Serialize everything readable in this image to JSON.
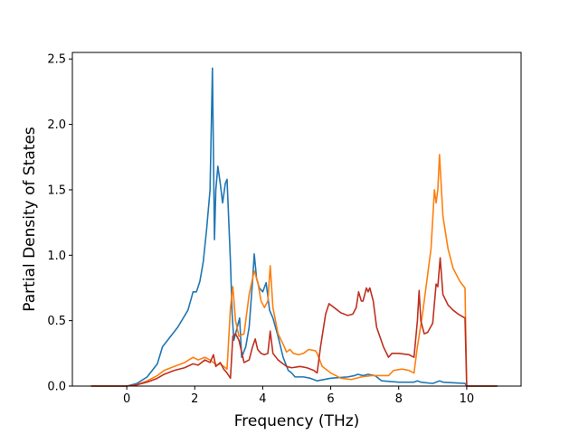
{
  "chart_data": {
    "type": "line",
    "title": "",
    "xlabel": "Frequency (THz)",
    "ylabel": "Partial Density of States",
    "xlim": [
      -1.6,
      11.6
    ],
    "ylim": [
      0,
      2.55
    ],
    "xticks": [
      0,
      2,
      4,
      6,
      8,
      10
    ],
    "yticks": [
      0.0,
      0.5,
      1.0,
      1.5,
      2.0,
      2.5
    ],
    "xtick_labels": [
      "0",
      "2",
      "4",
      "6",
      "8",
      "10"
    ],
    "ytick_labels": [
      "0.0",
      "0.5",
      "1.0",
      "1.5",
      "2.0",
      "2.5"
    ],
    "grid": false,
    "legend": "none",
    "series": [
      {
        "color": "#1f77b4",
        "points": [
          [
            -1.05,
            0
          ],
          [
            0,
            0
          ],
          [
            0.3,
            0.02
          ],
          [
            0.6,
            0.07
          ],
          [
            0.9,
            0.17
          ],
          [
            1.05,
            0.3
          ],
          [
            1.2,
            0.35
          ],
          [
            1.5,
            0.45
          ],
          [
            1.8,
            0.58
          ],
          [
            1.95,
            0.72
          ],
          [
            2.05,
            0.72
          ],
          [
            2.15,
            0.8
          ],
          [
            2.25,
            0.95
          ],
          [
            2.35,
            1.2
          ],
          [
            2.45,
            1.5
          ],
          [
            2.52,
            2.43
          ],
          [
            2.58,
            1.12
          ],
          [
            2.62,
            1.5
          ],
          [
            2.68,
            1.68
          ],
          [
            2.75,
            1.55
          ],
          [
            2.82,
            1.4
          ],
          [
            2.9,
            1.55
          ],
          [
            2.95,
            1.58
          ],
          [
            3.05,
            0.95
          ],
          [
            3.1,
            0.55
          ],
          [
            3.15,
            0.35
          ],
          [
            3.22,
            0.42
          ],
          [
            3.32,
            0.52
          ],
          [
            3.38,
            0.22
          ],
          [
            3.5,
            0.3
          ],
          [
            3.6,
            0.45
          ],
          [
            3.7,
            0.8
          ],
          [
            3.75,
            1.01
          ],
          [
            3.82,
            0.82
          ],
          [
            3.9,
            0.75
          ],
          [
            4.0,
            0.72
          ],
          [
            4.1,
            0.79
          ],
          [
            4.2,
            0.58
          ],
          [
            4.3,
            0.52
          ],
          [
            4.45,
            0.38
          ],
          [
            4.6,
            0.22
          ],
          [
            4.75,
            0.12
          ],
          [
            4.85,
            0.1
          ],
          [
            4.95,
            0.07
          ],
          [
            5.2,
            0.07
          ],
          [
            5.4,
            0.06
          ],
          [
            5.6,
            0.04
          ],
          [
            6.0,
            0.06
          ],
          [
            6.5,
            0.07
          ],
          [
            6.7,
            0.08
          ],
          [
            6.8,
            0.09
          ],
          [
            6.95,
            0.08
          ],
          [
            7.1,
            0.09
          ],
          [
            7.3,
            0.08
          ],
          [
            7.5,
            0.04
          ],
          [
            8.0,
            0.03
          ],
          [
            8.45,
            0.03
          ],
          [
            8.55,
            0.04
          ],
          [
            8.65,
            0.03
          ],
          [
            9.0,
            0.02
          ],
          [
            9.2,
            0.04
          ],
          [
            9.3,
            0.03
          ],
          [
            9.95,
            0.02
          ],
          [
            10.0,
            0
          ],
          [
            10.9,
            0
          ]
        ]
      },
      {
        "color": "#ff7f0e",
        "points": [
          [
            -1.05,
            0
          ],
          [
            0,
            0
          ],
          [
            0.3,
            0.01
          ],
          [
            0.6,
            0.04
          ],
          [
            0.9,
            0.08
          ],
          [
            1.1,
            0.12
          ],
          [
            1.4,
            0.15
          ],
          [
            1.7,
            0.18
          ],
          [
            1.95,
            0.22
          ],
          [
            2.1,
            0.2
          ],
          [
            2.3,
            0.22
          ],
          [
            2.45,
            0.2
          ],
          [
            2.55,
            0.18
          ],
          [
            2.65,
            0.16
          ],
          [
            2.75,
            0.17
          ],
          [
            2.85,
            0.15
          ],
          [
            2.95,
            0.13
          ],
          [
            3.05,
            0.6
          ],
          [
            3.12,
            0.76
          ],
          [
            3.2,
            0.5
          ],
          [
            3.3,
            0.38
          ],
          [
            3.45,
            0.4
          ],
          [
            3.6,
            0.7
          ],
          [
            3.75,
            0.88
          ],
          [
            3.85,
            0.8
          ],
          [
            3.95,
            0.65
          ],
          [
            4.05,
            0.6
          ],
          [
            4.15,
            0.65
          ],
          [
            4.22,
            0.92
          ],
          [
            4.3,
            0.6
          ],
          [
            4.45,
            0.4
          ],
          [
            4.6,
            0.32
          ],
          [
            4.7,
            0.26
          ],
          [
            4.8,
            0.28
          ],
          [
            4.9,
            0.25
          ],
          [
            5.05,
            0.24
          ],
          [
            5.2,
            0.25
          ],
          [
            5.35,
            0.28
          ],
          [
            5.55,
            0.27
          ],
          [
            5.6,
            0.25
          ],
          [
            5.75,
            0.15
          ],
          [
            6.0,
            0.1
          ],
          [
            6.3,
            0.06
          ],
          [
            6.6,
            0.05
          ],
          [
            6.9,
            0.07
          ],
          [
            7.2,
            0.08
          ],
          [
            7.5,
            0.08
          ],
          [
            7.7,
            0.08
          ],
          [
            7.85,
            0.12
          ],
          [
            8.1,
            0.13
          ],
          [
            8.3,
            0.12
          ],
          [
            8.45,
            0.1
          ],
          [
            8.55,
            0.3
          ],
          [
            8.7,
            0.55
          ],
          [
            8.8,
            0.75
          ],
          [
            8.95,
            1.05
          ],
          [
            9.05,
            1.5
          ],
          [
            9.1,
            1.4
          ],
          [
            9.15,
            1.5
          ],
          [
            9.2,
            1.77
          ],
          [
            9.3,
            1.3
          ],
          [
            9.45,
            1.05
          ],
          [
            9.6,
            0.9
          ],
          [
            9.8,
            0.8
          ],
          [
            9.95,
            0.75
          ],
          [
            10.0,
            0
          ],
          [
            10.9,
            0
          ]
        ]
      },
      {
        "color": "#bf3020",
        "points": [
          [
            -1.05,
            0
          ],
          [
            0,
            0
          ],
          [
            0.3,
            0.01
          ],
          [
            0.6,
            0.03
          ],
          [
            0.9,
            0.06
          ],
          [
            1.1,
            0.09
          ],
          [
            1.4,
            0.12
          ],
          [
            1.7,
            0.14
          ],
          [
            1.95,
            0.17
          ],
          [
            2.1,
            0.16
          ],
          [
            2.3,
            0.2
          ],
          [
            2.45,
            0.18
          ],
          [
            2.55,
            0.24
          ],
          [
            2.62,
            0.15
          ],
          [
            2.75,
            0.18
          ],
          [
            2.85,
            0.13
          ],
          [
            2.95,
            0.1
          ],
          [
            3.05,
            0.06
          ],
          [
            3.12,
            0.38
          ],
          [
            3.2,
            0.4
          ],
          [
            3.3,
            0.35
          ],
          [
            3.45,
            0.18
          ],
          [
            3.6,
            0.2
          ],
          [
            3.7,
            0.3
          ],
          [
            3.78,
            0.36
          ],
          [
            3.85,
            0.28
          ],
          [
            3.95,
            0.25
          ],
          [
            4.05,
            0.24
          ],
          [
            4.15,
            0.25
          ],
          [
            4.22,
            0.42
          ],
          [
            4.3,
            0.25
          ],
          [
            4.45,
            0.2
          ],
          [
            4.55,
            0.18
          ],
          [
            4.7,
            0.15
          ],
          [
            4.85,
            0.14
          ],
          [
            5.1,
            0.15
          ],
          [
            5.3,
            0.14
          ],
          [
            5.5,
            0.12
          ],
          [
            5.6,
            0.1
          ],
          [
            5.7,
            0.3
          ],
          [
            5.85,
            0.55
          ],
          [
            5.95,
            0.63
          ],
          [
            6.1,
            0.6
          ],
          [
            6.3,
            0.56
          ],
          [
            6.5,
            0.54
          ],
          [
            6.65,
            0.55
          ],
          [
            6.75,
            0.6
          ],
          [
            6.82,
            0.72
          ],
          [
            6.9,
            0.65
          ],
          [
            6.95,
            0.65
          ],
          [
            7.05,
            0.75
          ],
          [
            7.1,
            0.72
          ],
          [
            7.15,
            0.75
          ],
          [
            7.25,
            0.65
          ],
          [
            7.35,
            0.45
          ],
          [
            7.55,
            0.3
          ],
          [
            7.7,
            0.22
          ],
          [
            7.8,
            0.25
          ],
          [
            8.0,
            0.25
          ],
          [
            8.3,
            0.24
          ],
          [
            8.45,
            0.22
          ],
          [
            8.55,
            0.5
          ],
          [
            8.6,
            0.73
          ],
          [
            8.65,
            0.5
          ],
          [
            8.75,
            0.4
          ],
          [
            8.85,
            0.41
          ],
          [
            9.0,
            0.48
          ],
          [
            9.1,
            0.78
          ],
          [
            9.15,
            0.76
          ],
          [
            9.22,
            0.98
          ],
          [
            9.3,
            0.7
          ],
          [
            9.45,
            0.62
          ],
          [
            9.6,
            0.58
          ],
          [
            9.75,
            0.55
          ],
          [
            9.95,
            0.52
          ],
          [
            10.0,
            0
          ],
          [
            10.9,
            0
          ]
        ]
      }
    ]
  }
}
